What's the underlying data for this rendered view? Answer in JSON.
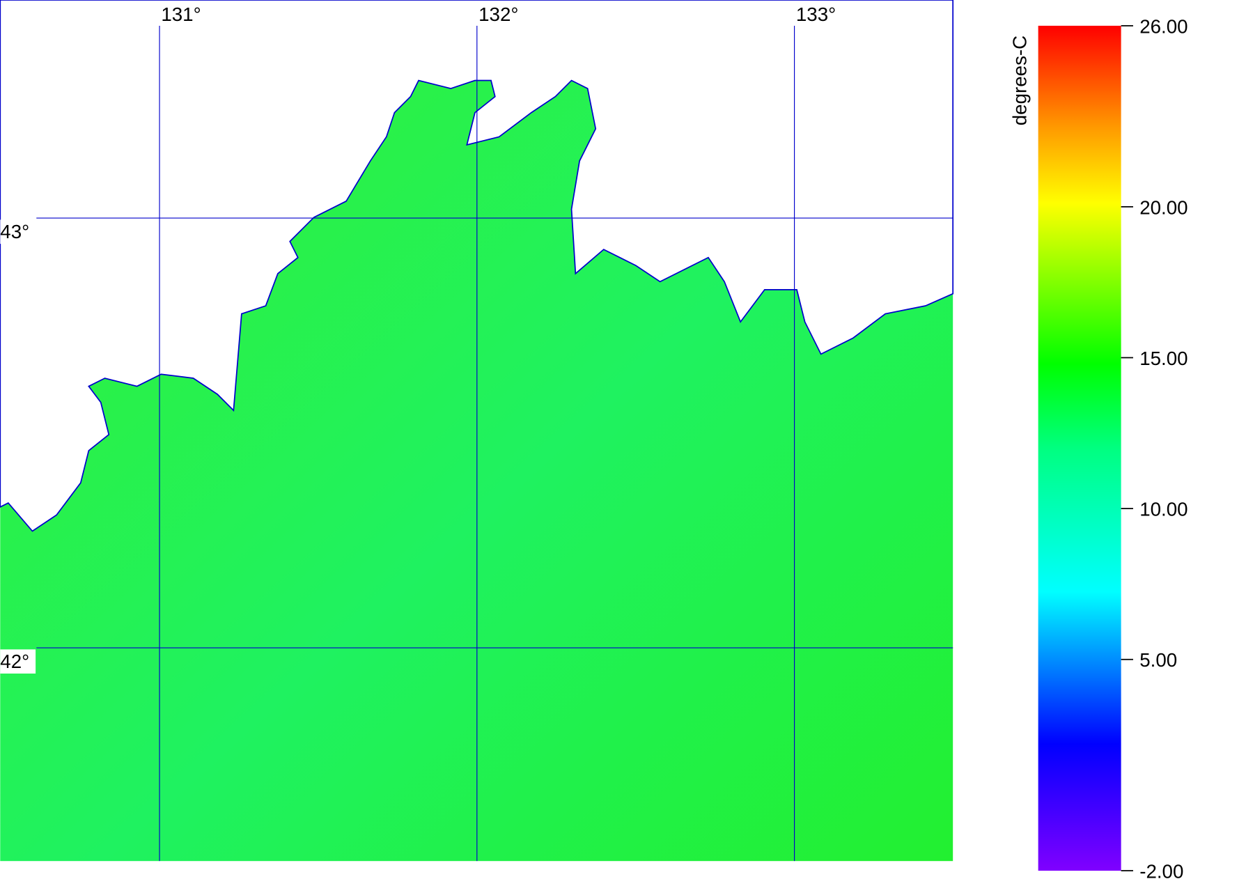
{
  "map": {
    "lon_ticks": [
      {
        "value": 131,
        "label": "131°"
      },
      {
        "value": 132,
        "label": "132°"
      },
      {
        "value": 133,
        "label": "133°"
      }
    ],
    "lat_ticks": [
      {
        "value": 43,
        "label": "43°"
      },
      {
        "value": 42,
        "label": "42°"
      }
    ],
    "colorbar": {
      "label": "degrees-C",
      "range": [
        -2,
        26
      ],
      "ticks": [
        {
          "value": 26,
          "label": "26.00"
        },
        {
          "value": 20,
          "label": "20.00"
        },
        {
          "value": 15,
          "label": "15.00"
        },
        {
          "value": 10,
          "label": "10.00"
        },
        {
          "value": 5,
          "label": "5.00"
        },
        {
          "value": -2,
          "label": "-2.00"
        }
      ]
    }
  }
}
